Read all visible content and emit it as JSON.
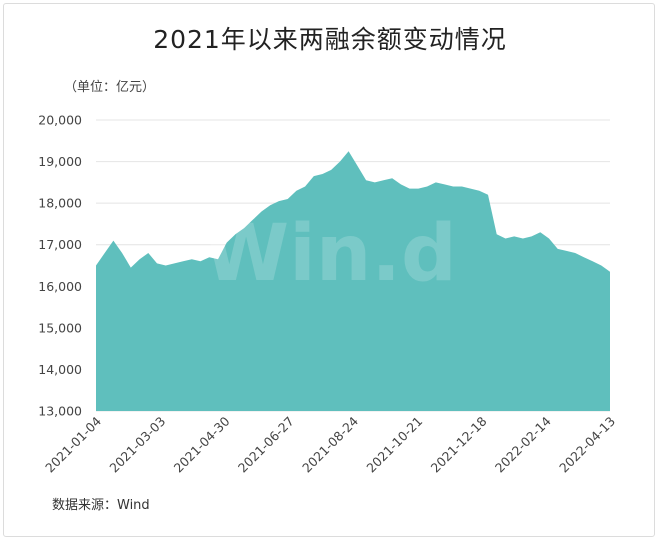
{
  "title": "2021年以来两融余额变动情况",
  "unit_label": "（单位：亿元）",
  "source": "数据来源：Wind",
  "watermark": "Win.d",
  "colors": {
    "area": "#5fbfbd",
    "grid": "#e4e4e4"
  },
  "chart_data": {
    "type": "area",
    "title": "2021年以来两融余额变动情况",
    "ylabel": "（单位：亿元）",
    "xlabel": "",
    "ylim": [
      13000,
      20000
    ],
    "yticks": [
      13000,
      14000,
      15000,
      16000,
      17000,
      18000,
      19000,
      20000
    ],
    "ytick_labels": [
      "13,000",
      "14,000",
      "15,000",
      "16,000",
      "17,000",
      "18,000",
      "19,000",
      "20,000"
    ],
    "xtick_labels": [
      "2021-01-04",
      "2021-03-03",
      "2021-04-30",
      "2021-06-27",
      "2021-08-24",
      "2021-10-21",
      "2021-12-18",
      "2022-02-14",
      "2022-04-13"
    ],
    "grid": true,
    "legend": "none",
    "series": [
      {
        "x": [
          "2021-01-04",
          "2021-01-12",
          "2021-01-20",
          "2021-01-28",
          "2021-02-05",
          "2021-02-13",
          "2021-02-21",
          "2021-03-01",
          "2021-03-09",
          "2021-03-17",
          "2021-03-25",
          "2021-04-02",
          "2021-04-10",
          "2021-04-18",
          "2021-04-26",
          "2021-05-04",
          "2021-05-12",
          "2021-05-20",
          "2021-05-28",
          "2021-06-05",
          "2021-06-13",
          "2021-06-21",
          "2021-06-29",
          "2021-07-07",
          "2021-07-15",
          "2021-07-23",
          "2021-07-31",
          "2021-08-08",
          "2021-08-16",
          "2021-08-24",
          "2021-09-01",
          "2021-09-09",
          "2021-09-17",
          "2021-09-25",
          "2021-10-03",
          "2021-10-11",
          "2021-10-19",
          "2021-10-27",
          "2021-11-04",
          "2021-11-12",
          "2021-11-20",
          "2021-11-28",
          "2021-12-06",
          "2021-12-14",
          "2021-12-22",
          "2021-12-30",
          "2022-01-07",
          "2022-01-15",
          "2022-01-23",
          "2022-01-31",
          "2022-02-08",
          "2022-02-16",
          "2022-02-24",
          "2022-03-04",
          "2022-03-12",
          "2022-03-20",
          "2022-03-28",
          "2022-04-05",
          "2022-04-13",
          "2022-04-21"
        ],
        "values": [
          16500,
          16800,
          17100,
          16800,
          16450,
          16650,
          16800,
          16550,
          16500,
          16550,
          16600,
          16650,
          16600,
          16700,
          16650,
          17050,
          17250,
          17400,
          17600,
          17800,
          17950,
          18050,
          18100,
          18300,
          18400,
          18650,
          18700,
          18800,
          19000,
          19250,
          18900,
          18550,
          18500,
          18550,
          18600,
          18450,
          18350,
          18350,
          18400,
          18500,
          18450,
          18400,
          18400,
          18350,
          18300,
          18200,
          17250,
          17150,
          17200,
          17150,
          17200,
          17300,
          17150,
          16900,
          16850,
          16800,
          16700,
          16600,
          16500,
          16350
        ]
      }
    ]
  }
}
